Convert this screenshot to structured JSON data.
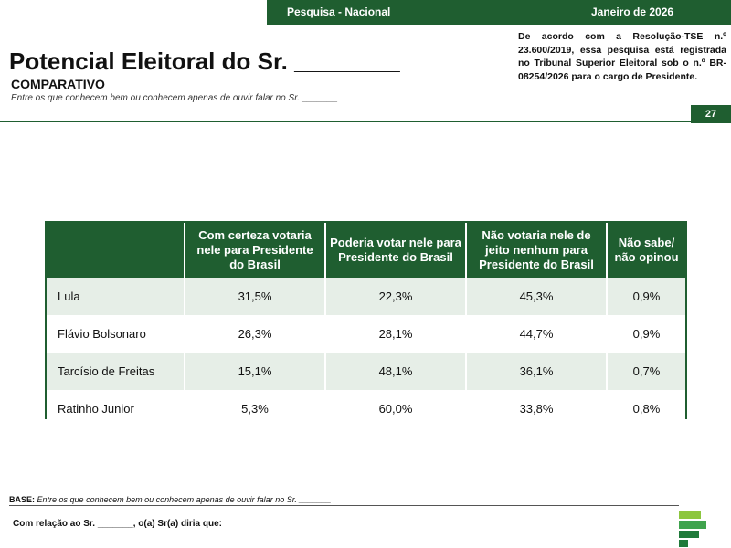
{
  "header": {
    "survey_label": "Pesquisa - Nacional",
    "date_label": "Janeiro de 2026"
  },
  "notice": "De acordo com a Resolução-TSE n.º 23.600/2019, essa pesquisa está registrada no Tribunal Superior Eleitoral sob o n.º BR-08254/2026 para o cargo de Presidente.",
  "title": "Potencial Eleitoral do Sr. ________",
  "subtitle": "COMPARATIVO",
  "top_note": "Entre os que conhecem bem ou conhecem apenas de ouvir falar no Sr. _______",
  "page_number": "27",
  "table": {
    "headers": [
      "",
      "Com certeza votaria nele para Presidente do Brasil",
      "Poderia votar nele para Presidente do Brasil",
      "Não votaria nele de jeito nenhum para Presidente do Brasil",
      "Não sabe/ não opinou"
    ],
    "rows": [
      {
        "name": "Lula",
        "values": [
          "31,5%",
          "22,3%",
          "45,3%",
          "0,9%"
        ]
      },
      {
        "name": "Flávio Bolsonaro",
        "values": [
          "26,3%",
          "28,1%",
          "44,7%",
          "0,9%"
        ]
      },
      {
        "name": "Tarcísio de Freitas",
        "values": [
          "15,1%",
          "48,1%",
          "36,1%",
          "0,7%"
        ]
      },
      {
        "name": "Ratinho Junior",
        "values": [
          "5,3%",
          "60,0%",
          "33,8%",
          "0,8%"
        ]
      }
    ]
  },
  "footer": {
    "base_label": "BASE:",
    "base_text": "Entre os que conhecem bem ou conhecem apenas de ouvir falar no Sr. _______",
    "question": "Com relação ao Sr. _______, o(a) Sr(a) diria que:"
  },
  "colors": {
    "brand_green": "#1f5e30",
    "light_green_row": "#e6eee7",
    "logo_light": "#8cc63f",
    "logo_mid": "#3fa34d",
    "logo_dark": "#1f7a3a"
  }
}
